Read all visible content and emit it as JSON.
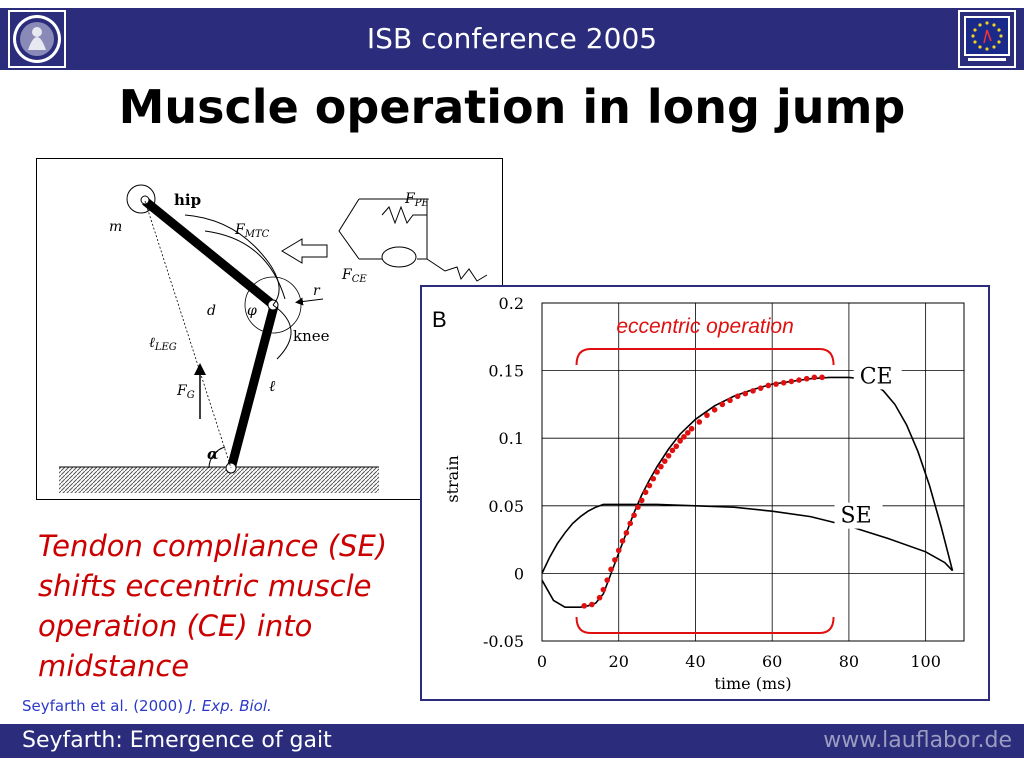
{
  "header": {
    "title": "ISB conference 2005"
  },
  "slide": {
    "title": "Muscle operation in long jump"
  },
  "diagram": {
    "labels": {
      "hip": "hip",
      "m": "m",
      "fmtc_base": "F",
      "fmtc_sub": "MTC",
      "fpe_base": "F",
      "fpe_sub": "PE",
      "fce_base": "F",
      "fce_sub": "CE",
      "r": "r",
      "d": "d",
      "phi": "φ",
      "knee": "knee",
      "leg_base": "ℓ",
      "leg_sub": "LEG",
      "fg_base": "F",
      "fg_sub": "G",
      "ell": "ℓ",
      "alpha": "α"
    }
  },
  "chart_data": {
    "type": "line",
    "panel_label": "B",
    "xlabel": "time (ms)",
    "ylabel": "strain",
    "xlim": [
      0,
      110
    ],
    "ylim": [
      -0.05,
      0.2
    ],
    "x_ticks": [
      "0",
      "20",
      "40",
      "60",
      "80",
      "100"
    ],
    "y_ticks": [
      "-0.05",
      "0",
      "0.05",
      "0.1",
      "0.15",
      "0.2"
    ],
    "grid": true,
    "series": [
      {
        "name": "CE",
        "x": [
          0,
          3,
          6,
          10,
          12,
          14,
          16,
          18,
          20,
          22,
          24,
          26,
          28,
          30,
          33,
          36,
          40,
          45,
          50,
          55,
          60,
          65,
          70,
          75,
          80,
          83,
          86,
          89,
          92,
          95,
          98,
          101,
          104,
          107
        ],
        "y": [
          -0.005,
          -0.02,
          -0.025,
          -0.025,
          -0.024,
          -0.022,
          -0.015,
          0.0,
          0.015,
          0.03,
          0.045,
          0.058,
          0.069,
          0.079,
          0.092,
          0.103,
          0.114,
          0.124,
          0.131,
          0.136,
          0.14,
          0.142,
          0.144,
          0.145,
          0.145,
          0.144,
          0.141,
          0.135,
          0.125,
          0.11,
          0.09,
          0.065,
          0.035,
          0.002
        ]
      },
      {
        "name": "SE",
        "x": [
          0,
          2,
          4,
          6,
          8,
          10,
          12,
          14,
          16,
          20,
          30,
          40,
          50,
          60,
          70,
          80,
          90,
          100,
          105,
          107
        ],
        "y": [
          0.0,
          0.012,
          0.022,
          0.03,
          0.037,
          0.042,
          0.046,
          0.049,
          0.051,
          0.051,
          0.051,
          0.05,
          0.049,
          0.046,
          0.042,
          0.035,
          0.026,
          0.016,
          0.008,
          0.002
        ]
      },
      {
        "name": "",
        "style": "dots",
        "color": "#e01010",
        "x": [
          11,
          13,
          15,
          16,
          17,
          18,
          19,
          20,
          21,
          22,
          23,
          24,
          25,
          26,
          27,
          28,
          29,
          30,
          31,
          32,
          33,
          34,
          35,
          36,
          37,
          38,
          39,
          41,
          43,
          45,
          47,
          49,
          51,
          53,
          55,
          57,
          59,
          61,
          63,
          65,
          67,
          69,
          71,
          73
        ],
        "y": [
          -0.024,
          -0.023,
          -0.018,
          -0.012,
          -0.005,
          0.003,
          0.01,
          0.017,
          0.024,
          0.03,
          0.037,
          0.043,
          0.049,
          0.054,
          0.06,
          0.065,
          0.07,
          0.075,
          0.079,
          0.083,
          0.087,
          0.091,
          0.094,
          0.098,
          0.101,
          0.104,
          0.107,
          0.112,
          0.117,
          0.121,
          0.125,
          0.128,
          0.131,
          0.133,
          0.135,
          0.137,
          0.139,
          0.14,
          0.141,
          0.142,
          0.143,
          0.144,
          0.145,
          0.145
        ]
      }
    ],
    "annotations": {
      "text": "eccentric operation",
      "color": "#e01010",
      "span_x": [
        9,
        76
      ]
    }
  },
  "statement": {
    "text": "Tendon compliance (SE) shifts eccentric muscle operation (CE) into midstance"
  },
  "citation": {
    "authors": "Seyfarth et al. (2000) ",
    "journal": "J. Exp. Biol."
  },
  "footer": {
    "left": "Seyfarth: Emergence of gait",
    "right": "www.lauflabor.de"
  },
  "colors": {
    "brand": "#2b2d7c",
    "accent_red": "#cc0000",
    "citation_blue": "#2b39c8"
  }
}
